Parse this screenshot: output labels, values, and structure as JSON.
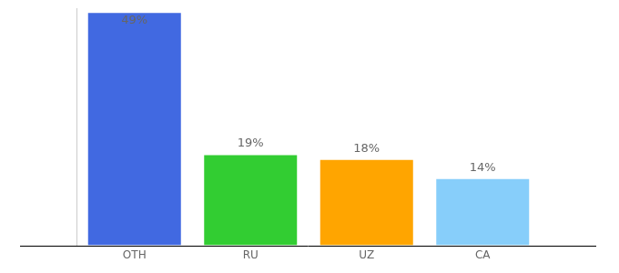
{
  "chart_data": {
    "type": "bar",
    "categories": [
      "OTH",
      "RU",
      "UZ",
      "CA"
    ],
    "values": [
      49,
      19,
      18,
      14
    ],
    "value_labels": [
      "49%",
      "19%",
      "18%",
      "14%"
    ],
    "colors": [
      "#4169e1",
      "#32cd32",
      "#ffa500",
      "#87cefa"
    ],
    "ylim": [
      0,
      50
    ],
    "grid": false,
    "data_labels": true,
    "tick_labels": "x"
  }
}
